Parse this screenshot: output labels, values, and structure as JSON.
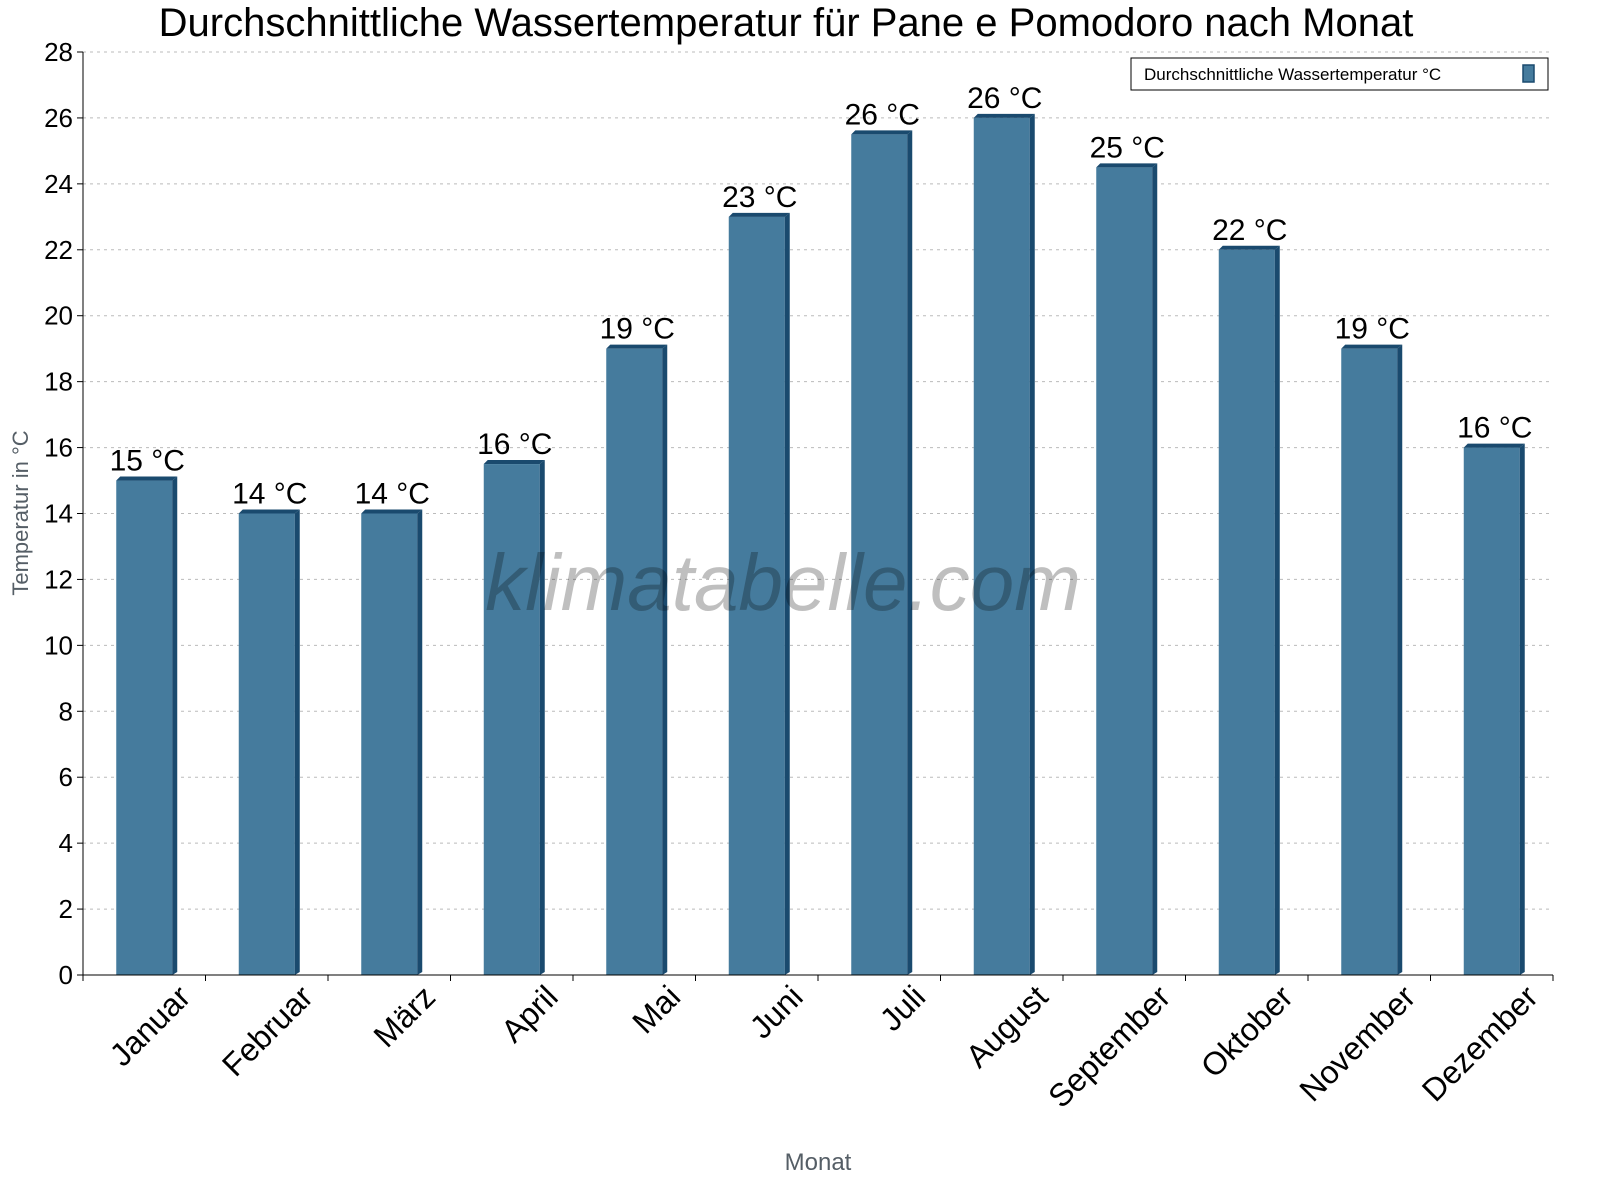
{
  "chart_data": {
    "type": "bar",
    "title": "Durchschnittliche Wassertemperatur für Pane e Pomodoro nach Monat",
    "xlabel": "Monat",
    "ylabel": "Temperatur in °C",
    "ylim": [
      0,
      28
    ],
    "yticks": [
      0,
      2,
      4,
      6,
      8,
      10,
      12,
      14,
      16,
      18,
      20,
      22,
      24,
      26,
      28
    ],
    "grid": true,
    "legend_position": "top-right",
    "categories": [
      "Januar",
      "Februar",
      "März",
      "April",
      "Mai",
      "Juni",
      "Juli",
      "August",
      "September",
      "Oktober",
      "November",
      "Dezember"
    ],
    "series": [
      {
        "name": "Durchschnittliche Wassertemperatur °C",
        "values": [
          15,
          14,
          14,
          15.5,
          19,
          23,
          25.5,
          26,
          24.5,
          22,
          19,
          16
        ],
        "labels": [
          "15 °C",
          "14 °C",
          "14 °C",
          "16 °C",
          "19 °C",
          "23 °C",
          "26 °C",
          "26 °C",
          "25 °C",
          "22 °C",
          "19 °C",
          "16 °C"
        ],
        "color": "#457b9d",
        "edge_color": "#1a4a6e"
      }
    ],
    "watermark": "klimatabelle.com"
  }
}
